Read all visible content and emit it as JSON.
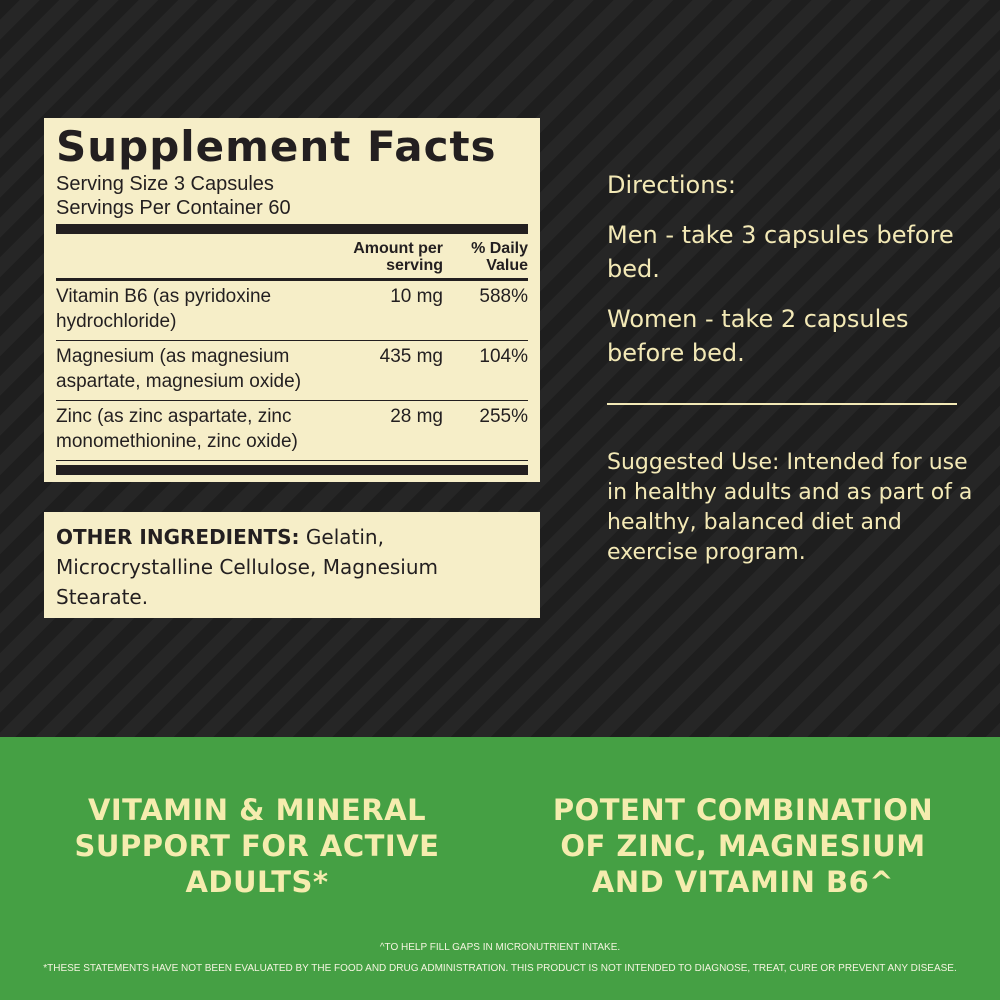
{
  "facts": {
    "title": "Supplement Facts",
    "serving_size": "Serving Size 3 Capsules",
    "servings_per_container": "Servings Per Container 60",
    "col_amount": "Amount per serving",
    "col_dv": "% Daily Value",
    "rows": [
      {
        "name": "Vitamin B6 (as pyridoxine hydrochloride)",
        "amount": "10 mg",
        "dv": "588%"
      },
      {
        "name": "Magnesium (as magnesium aspartate, magnesium oxide)",
        "amount": "435 mg",
        "dv": "104%"
      },
      {
        "name": "Zinc (as zinc aspartate, zinc monomethionine, zinc oxide)",
        "amount": "28 mg",
        "dv": "255%"
      }
    ]
  },
  "other": {
    "label": "OTHER INGREDIENTS:",
    "text": " Gelatin, Microcrystalline Cellulose, Magnesium Stearate."
  },
  "directions": {
    "title": "Directions:",
    "men": "Men - take 3 capsules before bed.",
    "women": "Women - take 2 capsules before bed."
  },
  "suggested": "Suggested Use: Intended for use in healthy adults and as part of a healthy, balanced diet and exercise program.",
  "banner": {
    "left": "VITAMIN & MINERAL SUPPORT FOR ACTIVE ADULTS*",
    "right": "POTENT COMBINATION OF ZINC, MAGNESIUM AND VITAMIN B6^",
    "footnote1": "^TO HELP FILL GAPS IN MICRONUTRIENT INTAKE.",
    "footnote2": "*THESE STATEMENTS HAVE NOT BEEN EVALUATED BY THE FOOD AND DRUG ADMINISTRATION. THIS PRODUCT IS NOT INTENDED TO DIAGNOSE, TREAT, CURE OR PREVENT ANY DISEASE."
  },
  "colors": {
    "background": "#222222",
    "panel": "#f6eec8",
    "green": "#45a044",
    "accent_text": "#f3e9b6"
  }
}
